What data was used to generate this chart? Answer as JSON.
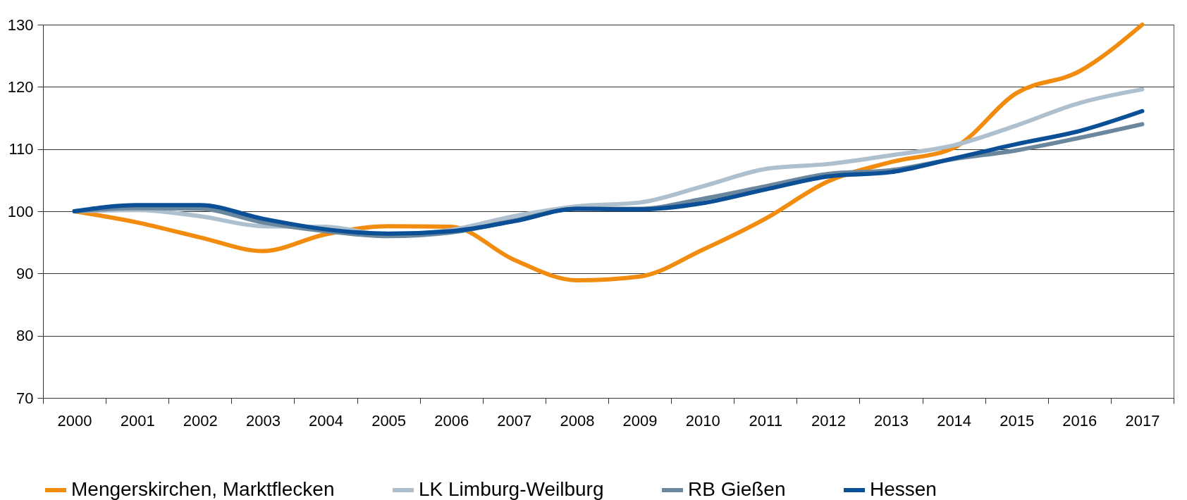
{
  "chart_data": {
    "type": "line",
    "categories": [
      "2000",
      "2001",
      "2002",
      "2003",
      "2004",
      "2005",
      "2006",
      "2007",
      "2008",
      "2009",
      "2010",
      "2011",
      "2012",
      "2013",
      "2014",
      "2015",
      "2016",
      "2017"
    ],
    "ylim": [
      70,
      130
    ],
    "yticks": [
      70,
      80,
      90,
      100,
      110,
      120,
      130
    ],
    "grid": "y",
    "legend": "bottom",
    "line_style": "solid",
    "marker": "none",
    "series": [
      {
        "name": "Mengerskirchen, Marktflecken",
        "color": "#f28c0f",
        "values": [
          100,
          98.2,
          95.8,
          93.6,
          96.3,
          97.6,
          97.5,
          92.2,
          88.9,
          89.5,
          93.8,
          98.8,
          104.8,
          107.9,
          110.2,
          119,
          122.5,
          130
        ]
      },
      {
        "name": "LK Limburg-Weilburg",
        "color": "#aebfce",
        "values": [
          100,
          100.2,
          99.2,
          97.6,
          97.5,
          96.2,
          97,
          99.2,
          100.8,
          101.4,
          104,
          106.8,
          107.6,
          109,
          110.6,
          113.8,
          117.4,
          119.6
        ]
      },
      {
        "name": "RB Gießen",
        "color": "#6b879e",
        "values": [
          100,
          100.5,
          100.4,
          98.2,
          96.8,
          96,
          96.6,
          98.5,
          100.4,
          100.4,
          102,
          104,
          106,
          106.6,
          108.4,
          109.8,
          111.8,
          114
        ]
      },
      {
        "name": "Hessen",
        "color": "#0b4f96",
        "values": [
          100,
          101,
          101,
          98.8,
          97.1,
          96.4,
          96.8,
          98.4,
          100.4,
          100.3,
          101.3,
          103.5,
          105.6,
          106.3,
          108.5,
          110.8,
          112.9,
          116.1
        ]
      }
    ]
  }
}
